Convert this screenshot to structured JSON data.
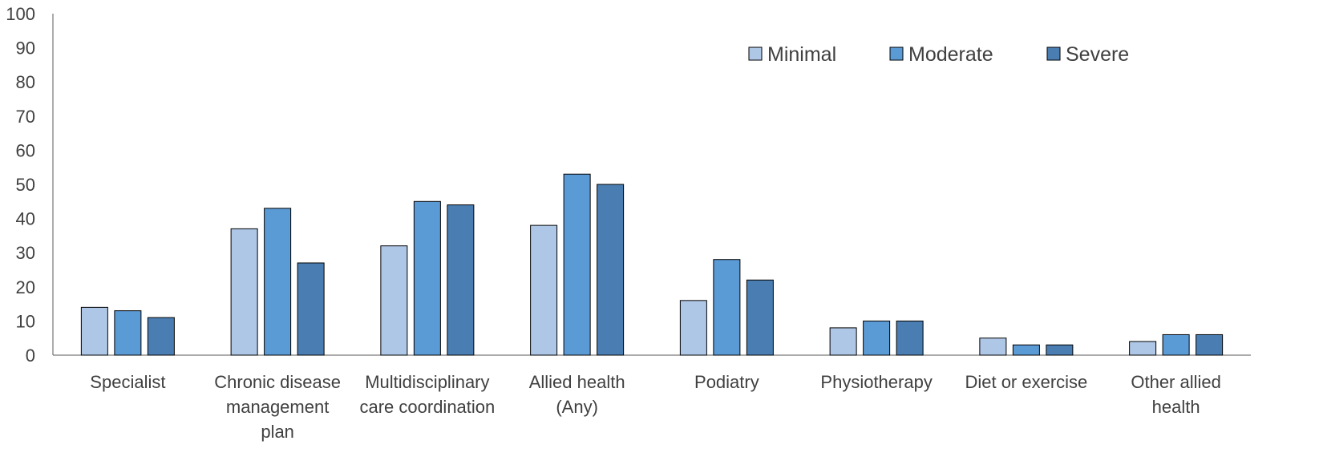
{
  "chart_data": {
    "type": "bar",
    "title": "",
    "xlabel": "",
    "ylabel": "",
    "ylim": [
      0,
      100
    ],
    "yticks": [
      0,
      10,
      20,
      30,
      40,
      50,
      60,
      70,
      80,
      90,
      100
    ],
    "categories": [
      [
        "Specialist"
      ],
      [
        "Chronic disease",
        "management",
        "plan"
      ],
      [
        "Multidisciplinary",
        "care coordination"
      ],
      [
        "Allied health",
        "(Any)"
      ],
      [
        "Podiatry"
      ],
      [
        "Physiotherapy"
      ],
      [
        "Diet or exercise"
      ],
      [
        "Other allied",
        "health"
      ]
    ],
    "series": [
      {
        "name": "Minimal",
        "color": "#afc7e6",
        "values": [
          14,
          37,
          32,
          38,
          16,
          8,
          5,
          4
        ]
      },
      {
        "name": "Moderate",
        "color": "#5b9bd5",
        "values": [
          13,
          43,
          45,
          53,
          28,
          10,
          3,
          6
        ]
      },
      {
        "name": "Severe",
        "color": "#4a7eb3",
        "values": [
          11,
          27,
          44,
          50,
          22,
          10,
          3,
          6
        ]
      }
    ],
    "grid": false,
    "legend_position": "top-right"
  }
}
